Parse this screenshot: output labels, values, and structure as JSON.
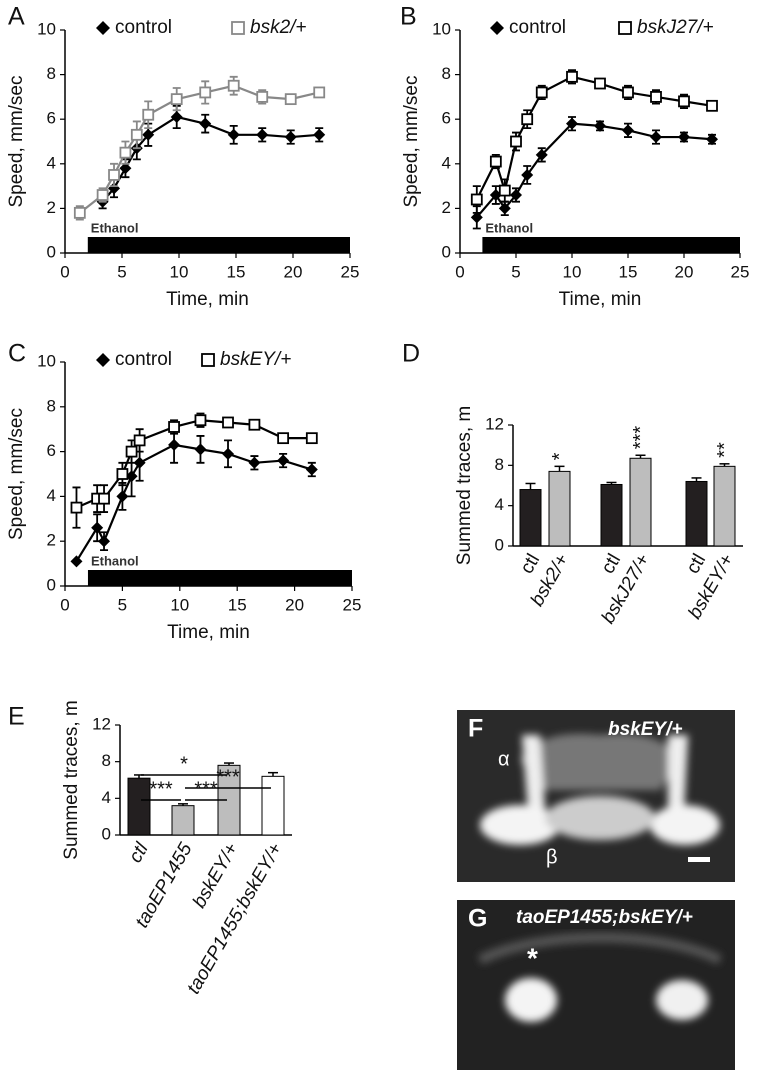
{
  "chart_data": [
    {
      "type": "line",
      "panel": "A",
      "xlabel": "Time, min",
      "ylabel": "Speed, mm/sec",
      "xlim": [
        0,
        25
      ],
      "ylim": [
        0,
        10
      ],
      "xticks": [
        0,
        5,
        10,
        15,
        20,
        25
      ],
      "yticks": [
        0,
        2,
        4,
        6,
        8,
        10
      ],
      "x": [
        1.3,
        3.3,
        4.3,
        5.3,
        6.3,
        7.3,
        9.8,
        12.3,
        14.8,
        17.3,
        19.8,
        22.3
      ],
      "ethanol": {
        "label": "Ethanol",
        "x": [
          2,
          25
        ]
      },
      "series": [
        {
          "name": "control",
          "marker": "diamond",
          "color": "#000000",
          "values": [
            null,
            2.3,
            2.9,
            3.8,
            4.7,
            5.3,
            6.1,
            5.8,
            5.3,
            5.3,
            5.2,
            5.3
          ],
          "errors": [
            null,
            0.3,
            0.4,
            0.4,
            0.5,
            0.5,
            0.5,
            0.4,
            0.4,
            0.3,
            0.3,
            0.3
          ]
        },
        {
          "name": "bsk2/+",
          "marker": "square",
          "color": "#888888",
          "values": [
            1.8,
            2.6,
            3.5,
            4.5,
            5.3,
            6.2,
            6.9,
            7.2,
            7.5,
            7.0,
            6.9,
            7.2
          ],
          "errors": [
            0.3,
            0.3,
            0.5,
            0.5,
            0.6,
            0.6,
            0.5,
            0.5,
            0.4,
            0.3,
            0.2,
            0.2
          ]
        }
      ]
    },
    {
      "type": "line",
      "panel": "B",
      "xlabel": "Time, min",
      "ylabel": "Speed, mm/sec",
      "xlim": [
        0,
        25
      ],
      "ylim": [
        0,
        10
      ],
      "xticks": [
        0,
        5,
        10,
        15,
        20,
        25
      ],
      "yticks": [
        0,
        2,
        4,
        6,
        8,
        10
      ],
      "x": [
        1.5,
        3.2,
        4.0,
        5.0,
        6.0,
        7.3,
        10,
        12.5,
        15,
        17.5,
        20,
        22.5
      ],
      "ethanol": {
        "label": "Ethanol",
        "x": [
          2,
          25
        ]
      },
      "series": [
        {
          "name": "control",
          "marker": "diamond",
          "color": "#000000",
          "values": [
            1.6,
            2.6,
            2.0,
            2.6,
            3.5,
            4.4,
            5.8,
            5.7,
            5.5,
            5.2,
            5.2,
            5.1
          ],
          "errors": [
            0.5,
            0.4,
            0.3,
            0.3,
            0.4,
            0.3,
            0.3,
            0.2,
            0.3,
            0.3,
            0.2,
            0.2
          ]
        },
        {
          "name": "bskJ27/+",
          "marker": "square",
          "color": "#000000",
          "values": [
            2.4,
            4.1,
            2.8,
            5.0,
            6.0,
            7.2,
            7.9,
            7.6,
            7.2,
            7.0,
            6.8,
            6.6
          ],
          "errors": [
            0.6,
            0.3,
            0.5,
            0.4,
            0.4,
            0.3,
            0.3,
            0.2,
            0.3,
            0.3,
            0.3,
            0.2
          ]
        }
      ]
    },
    {
      "type": "line",
      "panel": "C",
      "xlabel": "Time, min",
      "ylabel": "Speed, mm/sec",
      "xlim": [
        0,
        25
      ],
      "ylim": [
        0,
        10
      ],
      "xticks": [
        0,
        5,
        10,
        15,
        20,
        25
      ],
      "yticks": [
        0,
        2,
        4,
        6,
        8,
        10
      ],
      "x": [
        1,
        2.8,
        3.4,
        5,
        5.8,
        6.5,
        9.5,
        11.8,
        14.2,
        16.5,
        19,
        21.5
      ],
      "ethanol": {
        "label": "Ethanol",
        "x": [
          2,
          25
        ]
      },
      "series": [
        {
          "name": "control",
          "marker": "diamond",
          "color": "#000000",
          "values": [
            1.1,
            2.6,
            2.0,
            4.0,
            4.9,
            5.5,
            6.3,
            6.1,
            5.9,
            5.5,
            5.6,
            5.2
          ],
          "errors": [
            null,
            0.6,
            0.4,
            0.6,
            0.9,
            0.8,
            0.8,
            0.6,
            0.6,
            0.3,
            0.3,
            0.3
          ]
        },
        {
          "name": "bskEY/+",
          "marker": "square",
          "color": "#000000",
          "values": [
            3.5,
            3.9,
            3.9,
            5.0,
            6.0,
            6.5,
            7.1,
            7.4,
            7.3,
            7.2,
            6.6,
            6.6
          ],
          "errors": [
            0.9,
            0.6,
            0.6,
            0.5,
            0.5,
            0.5,
            0.3,
            0.3,
            0.2,
            0.2,
            0.1,
            0.1
          ]
        }
      ]
    },
    {
      "type": "bar",
      "panel": "D",
      "ylabel": "Summed traces, m",
      "ylim": [
        0,
        12
      ],
      "yticks": [
        0,
        4,
        8,
        12
      ],
      "categories": [
        "ctl",
        "bsk2/+",
        "ctl",
        "bskJ27/+",
        "ctl",
        "bskEY/+"
      ],
      "values": [
        5.6,
        7.4,
        6.1,
        8.7,
        6.4,
        7.9
      ],
      "errors": [
        0.6,
        0.5,
        0.2,
        0.3,
        0.35,
        0.25
      ],
      "colors": [
        "#231f20",
        "#bdbdbd",
        "#231f20",
        "#bdbdbd",
        "#231f20",
        "#bdbdbd"
      ],
      "significance": [
        null,
        "*",
        null,
        "***",
        null,
        "**"
      ]
    },
    {
      "type": "bar",
      "panel": "E",
      "ylabel": "Summed traces, m",
      "ylim": [
        0,
        12
      ],
      "yticks": [
        0,
        4,
        8,
        12
      ],
      "categories": [
        "ctl",
        "taoEP1455",
        "bskEY/+",
        "taoEP1455;bskEY/+"
      ],
      "values": [
        6.2,
        3.2,
        7.6,
        6.4
      ],
      "errors": [
        0.35,
        0.2,
        0.25,
        0.4
      ],
      "colors": [
        "#231f20",
        "#bdbdbd",
        "#bdbdbd",
        "#ffffff"
      ],
      "comparisons": [
        {
          "from": 0,
          "to": 2,
          "label": "*"
        },
        {
          "from": 1,
          "to": 3,
          "label": "***"
        },
        {
          "from": 0,
          "to": 1,
          "label": "***"
        },
        {
          "from": 1,
          "to": 2,
          "label": "***"
        }
      ]
    }
  ],
  "images": [
    {
      "panel": "F",
      "label": "bskEY/+",
      "markers": [
        "α",
        "β"
      ]
    },
    {
      "panel": "G",
      "label": "taoEP1455;bskEY/+",
      "markers": [
        "*"
      ]
    }
  ]
}
